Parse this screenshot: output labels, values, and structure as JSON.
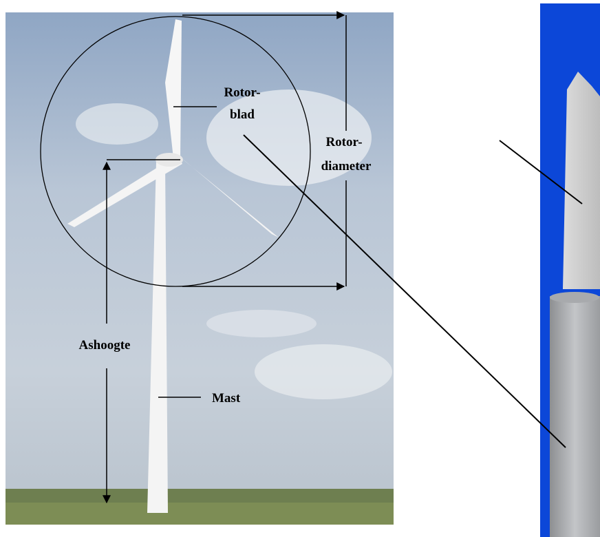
{
  "labels": {
    "rotorblad": [
      "Rotor-",
      "blad"
    ],
    "rotordiameter": [
      "Rotor-",
      "diameter"
    ],
    "ashoogte": "Ashoogte",
    "mast": "Mast"
  }
}
